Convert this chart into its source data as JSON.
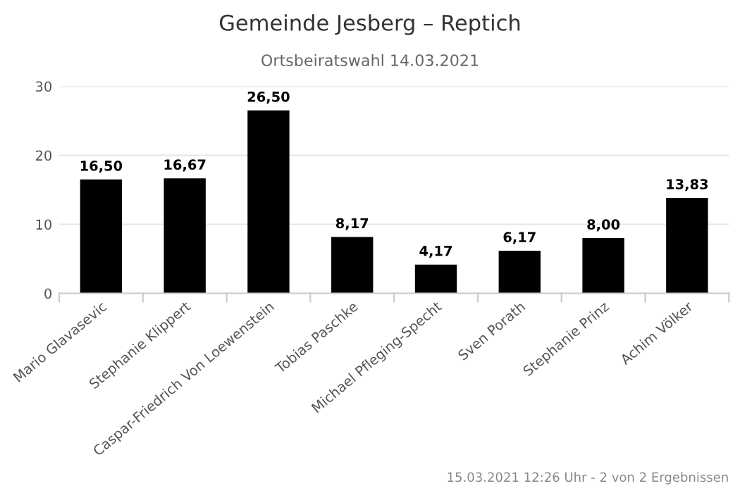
{
  "chart_data": {
    "type": "bar",
    "title": "Gemeinde Jesberg – Reptich",
    "subtitle": "Ortsbeiratswahl 14.03.2021",
    "categories": [
      "Mario Glavasevic",
      "Stephanie Klippert",
      "Caspar-Friedrich Von Loewenstein",
      "Tobias Paschke",
      "Michael Pfleging-Specht",
      "Sven Porath",
      "Stephanie Prinz",
      "Achim Völker"
    ],
    "values": [
      16.5,
      16.67,
      26.5,
      8.17,
      4.17,
      6.17,
      8.0,
      13.83
    ],
    "value_labels": [
      "16,50",
      "16,67",
      "26,50",
      "8,17",
      "4,17",
      "6,17",
      "8,00",
      "13,83"
    ],
    "color": "#000000",
    "ylim": [
      0,
      30
    ],
    "yticks": [
      0,
      10,
      20,
      30
    ],
    "grid": "y",
    "annotations": [
      "15.03.2021 12:26 Uhr - 2 von 2 Ergebnissen"
    ]
  }
}
